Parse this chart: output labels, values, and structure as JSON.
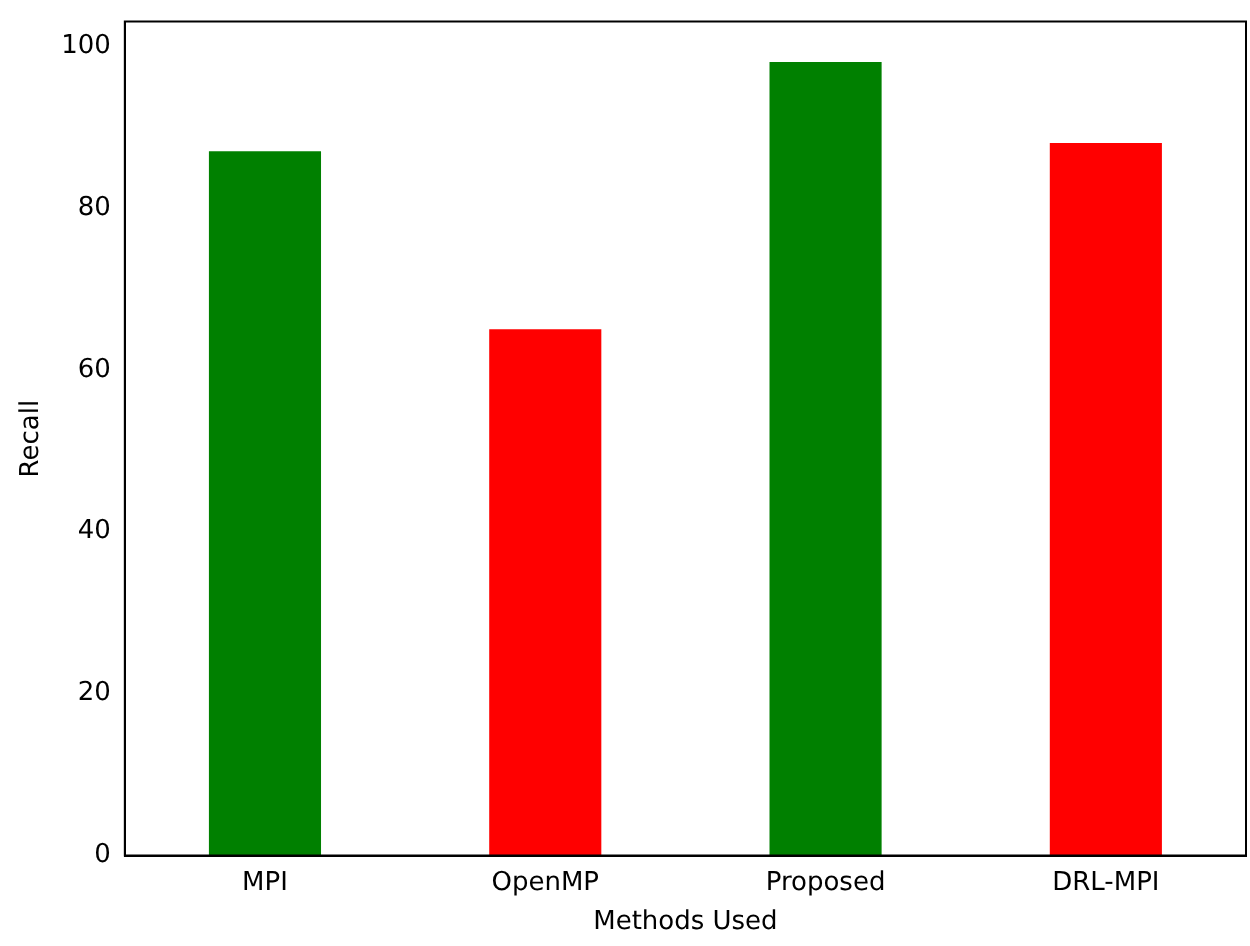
{
  "chart_data": {
    "type": "bar",
    "xlabel": "Methods Used",
    "ylabel": "Recall",
    "categories": [
      "MPI",
      "OpenMP",
      "Proposed",
      "DRL-MPI"
    ],
    "values": [
      87,
      65,
      98,
      88
    ],
    "colors": [
      "#008000",
      "#ff0000",
      "#008000",
      "#ff0000"
    ],
    "ylim": [
      0,
      103
    ],
    "yticks": [
      0,
      20,
      40,
      60,
      80,
      100
    ],
    "grid": false,
    "legend": false
  }
}
